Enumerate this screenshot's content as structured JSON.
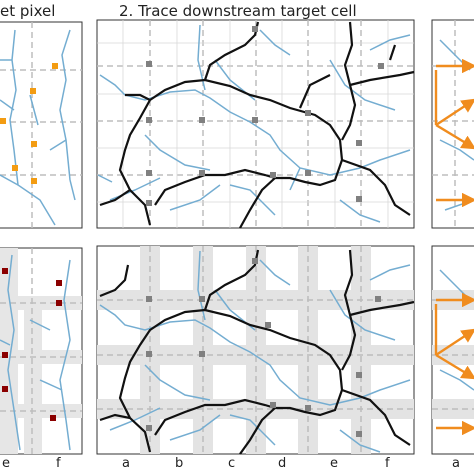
{
  "titles": {
    "left": "et pixel",
    "center": "2. Trace downstream target cell"
  },
  "panels": [
    {
      "id": "1-2"
    },
    {
      "id": "1-3"
    },
    {
      "id": "2-2"
    },
    {
      "id": "2-3"
    }
  ],
  "tick_labels": {
    "left": [
      "e",
      "f"
    ],
    "center": [
      "a",
      "b",
      "c",
      "d",
      "e",
      "f"
    ],
    "right": [
      "a"
    ]
  },
  "colors": {
    "river": "#74add1",
    "boundary": "#111111",
    "grid": "#bdbdbd",
    "node_gray": "#808080",
    "node_orange": "#f39c12",
    "node_darkred": "#8b0000",
    "arrow_orange": "#f08c1e",
    "shade": "#e3e3e3"
  }
}
